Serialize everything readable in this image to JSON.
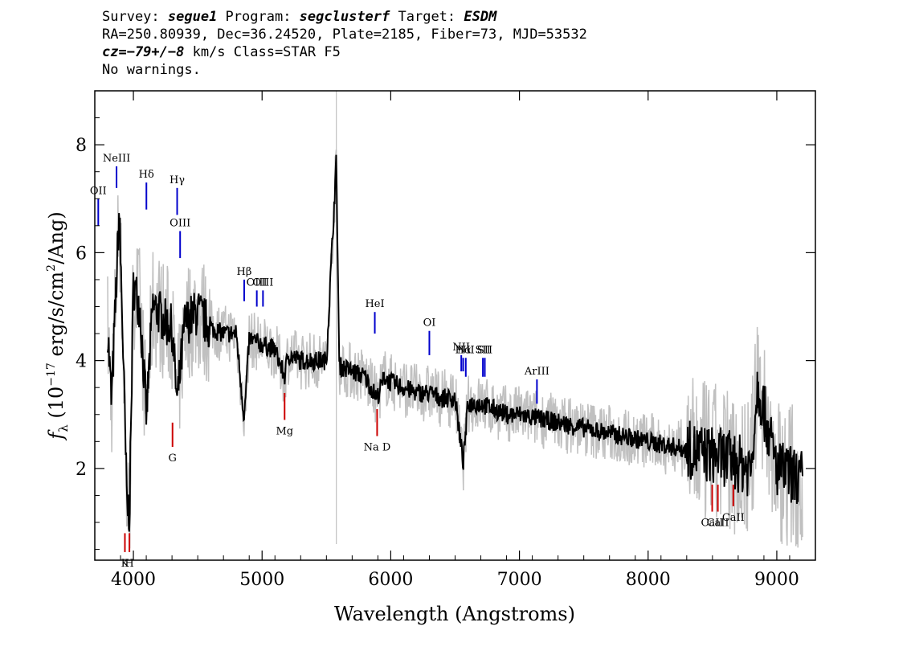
{
  "header": {
    "l1_survey_label": "Survey: ",
    "l1_survey": "segue1",
    "l1_program_label": " Program: ",
    "l1_program": "segclusterf",
    "l1_target_label": " Target: ",
    "l1_target": "ESDM",
    "l2": "RA=250.80939, Dec=36.24520, Plate=2185, Fiber=73, MJD=53532",
    "l3_cz": "cz=−79+/−8",
    "l3_rest": " km/s Class=STAR F5",
    "l4": "No warnings."
  },
  "chart_data": {
    "type": "line",
    "xlabel": "Wavelength (Angstroms)",
    "ylabel": "f_λ (10^-17 erg/s/cm^2/Ang)",
    "xlim": [
      3700,
      9300
    ],
    "ylim": [
      0.3,
      9.0
    ],
    "xticks": [
      4000,
      5000,
      6000,
      7000,
      8000,
      9000
    ],
    "yticks": [
      2,
      4,
      6,
      8
    ],
    "series": [
      {
        "color": "#000000",
        "x": [
          3800,
          3830,
          3860,
          3890,
          3920,
          3950,
          3970,
          4000,
          4050,
          4101,
          4150,
          4200,
          4250,
          4300,
          4340,
          4400,
          4450,
          4500,
          4600,
          4700,
          4800,
          4861,
          4900,
          5000,
          5100,
          5175,
          5200,
          5300,
          5400,
          5500,
          5577,
          5600,
          5700,
          5800,
          5893,
          5950,
          6000,
          6100,
          6200,
          6300,
          6400,
          6500,
          6563,
          6600,
          6700,
          6800,
          6900,
          7000,
          7200,
          7400,
          7600,
          7800,
          8000,
          8200,
          8400,
          8600,
          8800,
          8850,
          9000,
          9200
        ],
        "values": [
          4.6,
          3.2,
          5.0,
          6.8,
          4.2,
          1.3,
          1.2,
          5.4,
          5.0,
          3.0,
          5.0,
          4.9,
          4.7,
          4.6,
          3.2,
          4.7,
          4.8,
          4.9,
          4.6,
          4.5,
          4.5,
          2.9,
          4.4,
          4.3,
          4.2,
          3.7,
          4.1,
          4.0,
          4.0,
          4.0,
          7.7,
          3.9,
          3.8,
          3.7,
          3.3,
          3.7,
          3.6,
          3.5,
          3.4,
          3.4,
          3.3,
          3.3,
          2.1,
          3.2,
          3.2,
          3.1,
          3.0,
          3.0,
          2.9,
          2.8,
          2.7,
          2.6,
          2.5,
          2.4,
          2.3,
          2.2,
          2.0,
          3.6,
          2.0,
          1.8
        ]
      }
    ],
    "emission_lines": [
      {
        "name": "OII",
        "x": 3727,
        "y0": 6.5,
        "y1": 7.0
      },
      {
        "name": "NeIII",
        "x": 3869,
        "y0": 7.2,
        "y1": 7.6
      },
      {
        "name": "Hδ",
        "x": 4101,
        "y0": 6.8,
        "y1": 7.3
      },
      {
        "name": "Hγ",
        "x": 4340,
        "y0": 6.7,
        "y1": 7.2
      },
      {
        "name": "OIII",
        "x": 4363,
        "y0": 5.9,
        "y1": 6.4
      },
      {
        "name": "Hβ",
        "x": 4861,
        "y0": 5.1,
        "y1": 5.5
      },
      {
        "name": "OIII",
        "x": 4959,
        "y0": 5.0,
        "y1": 5.3
      },
      {
        "name": "OIII",
        "x": 5007,
        "y0": 5.0,
        "y1": 5.3
      },
      {
        "name": "HeI",
        "x": 5876,
        "y0": 4.5,
        "y1": 4.9
      },
      {
        "name": "OI",
        "x": 6300,
        "y0": 4.1,
        "y1": 4.55
      },
      {
        "name": "NII",
        "x": 6548,
        "y0": 3.8,
        "y1": 4.1
      },
      {
        "name": "Hα",
        "x": 6563,
        "y0": 3.8,
        "y1": 4.05
      },
      {
        "name": "NII",
        "x": 6583,
        "y0": 3.7,
        "y1": 4.05
      },
      {
        "name": "SII",
        "x": 6716,
        "y0": 3.7,
        "y1": 4.05
      },
      {
        "name": "SII",
        "x": 6731,
        "y0": 3.7,
        "y1": 4.05
      },
      {
        "name": "ArIII",
        "x": 7136,
        "y0": 3.2,
        "y1": 3.65
      }
    ],
    "absorption_lines": [
      {
        "name": "K",
        "x": 3934,
        "y0": 0.45,
        "y1": 0.8
      },
      {
        "name": "H",
        "x": 3969,
        "y0": 0.45,
        "y1": 0.8
      },
      {
        "name": "G",
        "x": 4304,
        "y0": 2.4,
        "y1": 2.85
      },
      {
        "name": "Mg",
        "x": 5175,
        "y0": 2.9,
        "y1": 3.4
      },
      {
        "name": "Na D",
        "x": 5894,
        "y0": 2.6,
        "y1": 3.1
      },
      {
        "name": "CaII",
        "x": 8498,
        "y0": 1.2,
        "y1": 1.7
      },
      {
        "name": "CaII",
        "x": 8542,
        "y0": 1.2,
        "y1": 1.7
      },
      {
        "name": "CaII",
        "x": 8662,
        "y0": 1.3,
        "y1": 1.7
      }
    ],
    "emission_color": "#0000cc",
    "absorption_color": "#cc0000",
    "error_band_color": "#c0c0c0"
  }
}
